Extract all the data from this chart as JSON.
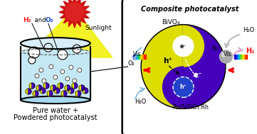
{
  "title": "Composite photocatalyst",
  "left_label1": "Pure water +",
  "left_label2": "Powdered photocatalyst",
  "sunlight_label": "Sunlight",
  "bivo4_label": "BiVO₄",
  "ru_srtio3_label": "Ru/SrTiO₃:Rh",
  "ru_label": "Ru",
  "h2o_label": "H₂O",
  "h2_label": "H₂",
  "o2_label": "O₂",
  "vis_label": "Vis.",
  "hp_label": "h⁺",
  "em_label": "e⁻",
  "bg_color": "#ffffff",
  "water_color": "#c5e8f5",
  "yellow_color": "#dddd00",
  "purple_color": "#4400bb",
  "blue_circle_color": "#2244cc",
  "sun_color": "#dd2222",
  "sun_ray_color": "#cc1111",
  "yellow_beam": "#f0f000",
  "gray_sphere": "#aaaaaa",
  "light_arrow": "#bbbbbb",
  "pink_arrow": "#ddaacc",
  "blue_arrow": "#88bbdd"
}
